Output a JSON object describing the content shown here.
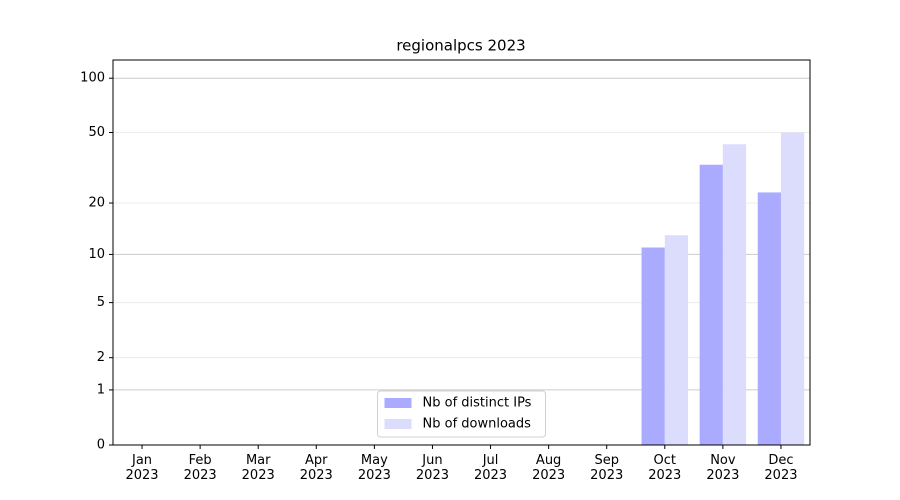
{
  "chart_data": {
    "type": "bar",
    "title": "regionalpcs 2023",
    "categories": [
      "Jan\n2023",
      "Feb\n2023",
      "Mar\n2023",
      "Apr\n2023",
      "May\n2023",
      "Jun\n2023",
      "Jul\n2023",
      "Aug\n2023",
      "Sep\n2023",
      "Oct\n2023",
      "Nov\n2023",
      "Dec\n2023"
    ],
    "series": [
      {
        "name": "Nb of distinct IPs",
        "color": "#aaaaff",
        "values": [
          0,
          0,
          0,
          0,
          0,
          0,
          0,
          0,
          0,
          11,
          33,
          23
        ]
      },
      {
        "name": "Nb of downloads",
        "color": "#dcdcfc",
        "values": [
          0,
          0,
          0,
          0,
          0,
          0,
          0,
          0,
          0,
          13,
          43,
          50
        ]
      }
    ],
    "y_scale": "log1p",
    "ylim": [
      0,
      126
    ],
    "yticks": [
      0,
      1,
      2,
      5,
      10,
      20,
      50,
      100
    ],
    "grid": true,
    "legend": "lower center"
  }
}
